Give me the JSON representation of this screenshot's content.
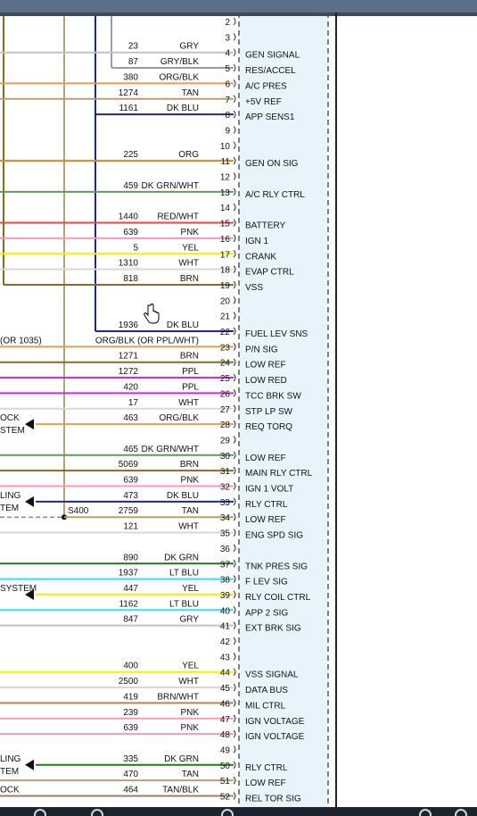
{
  "colors": {
    "connector_fill": "#e8f4fc",
    "GRY": "#c2c2c2",
    "GRY/BLK": "#9d9d9d",
    "ORG/BLK": "#e0a050",
    "TAN": "#b8a072",
    "DK BLU": "#1a2a8c",
    "ORG": "#f08020",
    "DK GRN/WHT": "#58a058",
    "RED/WHT": "#e04848",
    "PNK": "#f49ac0",
    "YEL": "#f5f000",
    "WHT": "#d9d9d9",
    "BRN": "#8b6b1c",
    "PPL": "#e020e0",
    "DK GRN": "#1a7a1a",
    "LT BLU": "#30e0f0",
    "BRN/WHT": "#b08850",
    "TAN/BLK": "#a08060",
    "ORG/BLK (OR PPL/WHT)": "#e0a050"
  },
  "rows": [
    {
      "pin": "2"
    },
    {
      "pin": "3"
    },
    {
      "pin": "4",
      "circuit": "23",
      "color": "GRY",
      "signal": "GEN SIGNAL"
    },
    {
      "pin": "5",
      "circuit": "87",
      "color": "GRY/BLK",
      "signal": "RES/ACCEL"
    },
    {
      "pin": "6",
      "circuit": "380",
      "color": "ORG/BLK",
      "signal": "A/C PRES"
    },
    {
      "pin": "7",
      "circuit": "1274",
      "color": "TAN",
      "signal": "+5V REF"
    },
    {
      "pin": "8",
      "circuit": "1161",
      "color": "DK BLU",
      "signal": "APP SENS1"
    },
    {
      "pin": "9"
    },
    {
      "pin": "10"
    },
    {
      "pin": "11",
      "circuit": "225",
      "color": "ORG",
      "signal": "GEN ON SIG"
    },
    {
      "pin": "12"
    },
    {
      "pin": "13",
      "circuit": "459",
      "color": "DK GRN/WHT",
      "signal": "A/C RLY CTRL"
    },
    {
      "pin": "14"
    },
    {
      "pin": "15",
      "circuit": "1440",
      "color": "RED/WHT",
      "signal": "BATTERY"
    },
    {
      "pin": "16",
      "circuit": "639",
      "color": "PNK",
      "signal": "IGN 1"
    },
    {
      "pin": "17",
      "circuit": "5",
      "color": "YEL",
      "signal": "CRANK"
    },
    {
      "pin": "18",
      "circuit": "1310",
      "color": "WHT",
      "signal": "EVAP CTRL"
    },
    {
      "pin": "19",
      "circuit": "818",
      "color": "BRN",
      "signal": "VSS"
    },
    {
      "pin": "20"
    },
    {
      "pin": "21"
    },
    {
      "pin": "22",
      "circuit": "1936",
      "color": "DK BLU",
      "signal": "FUEL LEV SNS"
    },
    {
      "pin": "23",
      "circuit": "",
      "color": "ORG/BLK (OR PPL/WHT)",
      "signal": "P/N SIG",
      "left": "(OR 1035)"
    },
    {
      "pin": "24",
      "circuit": "1271",
      "color": "BRN",
      "signal": "LOW REF"
    },
    {
      "pin": "25",
      "circuit": "1272",
      "color": "PPL",
      "signal": "LOW RED"
    },
    {
      "pin": "26",
      "circuit": "420",
      "color": "PPL",
      "signal": "TCC BRK SW"
    },
    {
      "pin": "27",
      "circuit": "17",
      "color": "WHT",
      "signal": "STP LP SW"
    },
    {
      "pin": "28",
      "circuit": "463",
      "color": "ORG/BLK",
      "signal": "REQ TORQ",
      "left": "OCK",
      "left2": "STEM",
      "arrow": true
    },
    {
      "pin": "29"
    },
    {
      "pin": "30",
      "circuit": "465",
      "color": "DK GRN/WHT",
      "signal": "LOW REF"
    },
    {
      "pin": "31",
      "circuit": "5069",
      "color": "BRN",
      "signal": "MAIN RLY CTRL"
    },
    {
      "pin": "32",
      "circuit": "639",
      "color": "PNK",
      "signal": "IGN 1 VOLT"
    },
    {
      "pin": "33",
      "circuit": "473",
      "color": "DK BLU",
      "signal": "RLY CTRL",
      "left": "LING",
      "left2": "TEM",
      "arrow": true
    },
    {
      "pin": "34",
      "circuit": "2759",
      "color": "TAN",
      "signal": "LOW REF"
    },
    {
      "pin": "35",
      "circuit": "121",
      "color": "WHT",
      "signal": "ENG SPD SIG"
    },
    {
      "pin": "36"
    },
    {
      "pin": "37",
      "circuit": "890",
      "color": "DK GRN",
      "signal": "TNK PRES SIG"
    },
    {
      "pin": "38",
      "circuit": "1937",
      "color": "LT BLU",
      "signal": "F LEV SIG"
    },
    {
      "pin": "39",
      "circuit": "447",
      "color": "YEL",
      "signal": "RLY COIL CTRL",
      "left": "SYSTEM",
      "arrow": true
    },
    {
      "pin": "40",
      "circuit": "1162",
      "color": "LT BLU",
      "signal": "APP 2 SIG"
    },
    {
      "pin": "41",
      "circuit": "847",
      "color": "GRY",
      "signal": "EXT BRK SIG"
    },
    {
      "pin": "42"
    },
    {
      "pin": "43"
    },
    {
      "pin": "44",
      "circuit": "400",
      "color": "YEL",
      "signal": "VSS SIGNAL"
    },
    {
      "pin": "45",
      "circuit": "2500",
      "color": "WHT",
      "signal": "DATA BUS"
    },
    {
      "pin": "46",
      "circuit": "419",
      "color": "BRN/WHT",
      "signal": "MIL CTRL"
    },
    {
      "pin": "47",
      "circuit": "239",
      "color": "PNK",
      "signal": "IGN VOLTAGE"
    },
    {
      "pin": "48",
      "circuit": "639",
      "color": "PNK",
      "signal": "IGN VOLTAGE"
    },
    {
      "pin": "49"
    },
    {
      "pin": "50",
      "circuit": "335",
      "color": "DK GRN",
      "signal": "RLY CTRL",
      "left": "LING",
      "left2": "TEM",
      "arrow": true
    },
    {
      "pin": "51",
      "circuit": "470",
      "color": "TAN",
      "signal": "LOW REF"
    },
    {
      "pin": "52",
      "circuit": "464",
      "color": "TAN/BLK",
      "signal": "REL TOR SIG",
      "left": "OCK"
    }
  ],
  "splice_label": "S400"
}
